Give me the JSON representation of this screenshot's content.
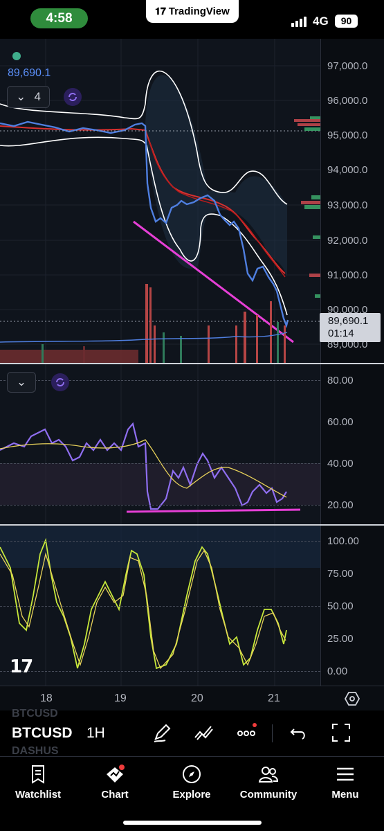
{
  "status_bar": {
    "time": "4:58",
    "banner": "TradingView",
    "network": "4G",
    "battery": "90"
  },
  "chart": {
    "current_price_label": "89,690.1",
    "last_price": "89,690.1",
    "countdown": "01:14",
    "indicator_count": "4",
    "price_axis": [
      "97,000.0",
      "96,000.0",
      "95,000.0",
      "94,000.0",
      "93,000.0",
      "92,000.0",
      "91,000.0",
      "90,000.0",
      "89,000.0"
    ],
    "rsi_axis": [
      "80.00",
      "60.00",
      "40.00",
      "20.00"
    ],
    "stoch_axis": [
      "100.00",
      "75.00",
      "50.00",
      "25.00",
      "0.00"
    ],
    "time_axis": [
      "18",
      "19",
      "20",
      "21"
    ],
    "watermark": "17"
  },
  "toolbar": {
    "symbol": "BTCUSD",
    "timeframe": "1H",
    "ghost_symbol_top": "BTCUSD",
    "ghost_symbol_bottom": "DASHUS"
  },
  "tabs": [
    {
      "label": "Watchlist",
      "icon": "bookmark-icon"
    },
    {
      "label": "Chart",
      "icon": "chart-icon"
    },
    {
      "label": "Explore",
      "icon": "compass-icon"
    },
    {
      "label": "Community",
      "icon": "people-icon"
    },
    {
      "label": "Menu",
      "icon": "hamburger-icon"
    }
  ],
  "colors": {
    "accent_blue": "#5b8ff9",
    "up": "#26a69a",
    "down": "#ef5350",
    "rsi_line": "#8f6ef0",
    "trend_line": "#e63fd6",
    "stoch_k": "#c7e83a",
    "stoch_d": "#e8d25a",
    "status_pill": "#2f8c3c"
  }
}
